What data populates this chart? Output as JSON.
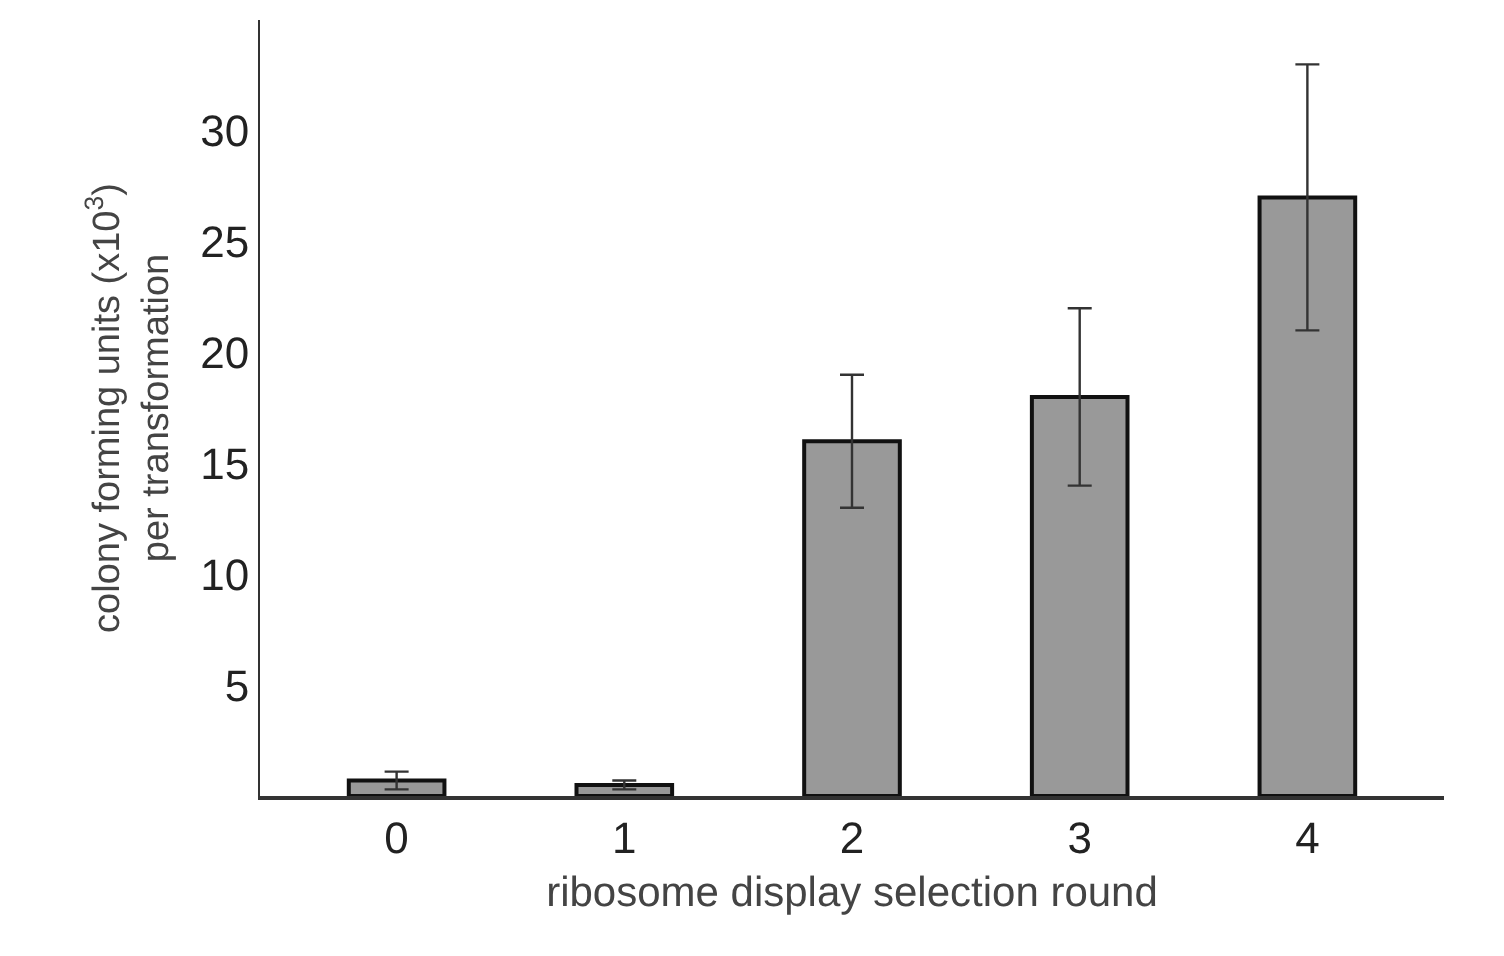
{
  "chart_data": {
    "type": "bar",
    "xlabel": "ribosome display selection round",
    "ylabel": "colony forming units (x10$^{3}$)\nper transformation",
    "categories": [
      "0",
      "1",
      "2",
      "3",
      "4"
    ],
    "values": [
      0.7,
      0.5,
      16,
      18,
      27
    ],
    "errors": [
      0.4,
      0.2,
      3,
      4,
      6
    ],
    "color": "#999999",
    "ylim": [
      0,
      35
    ],
    "yticks": [
      5,
      10,
      15,
      20,
      25,
      30
    ]
  }
}
